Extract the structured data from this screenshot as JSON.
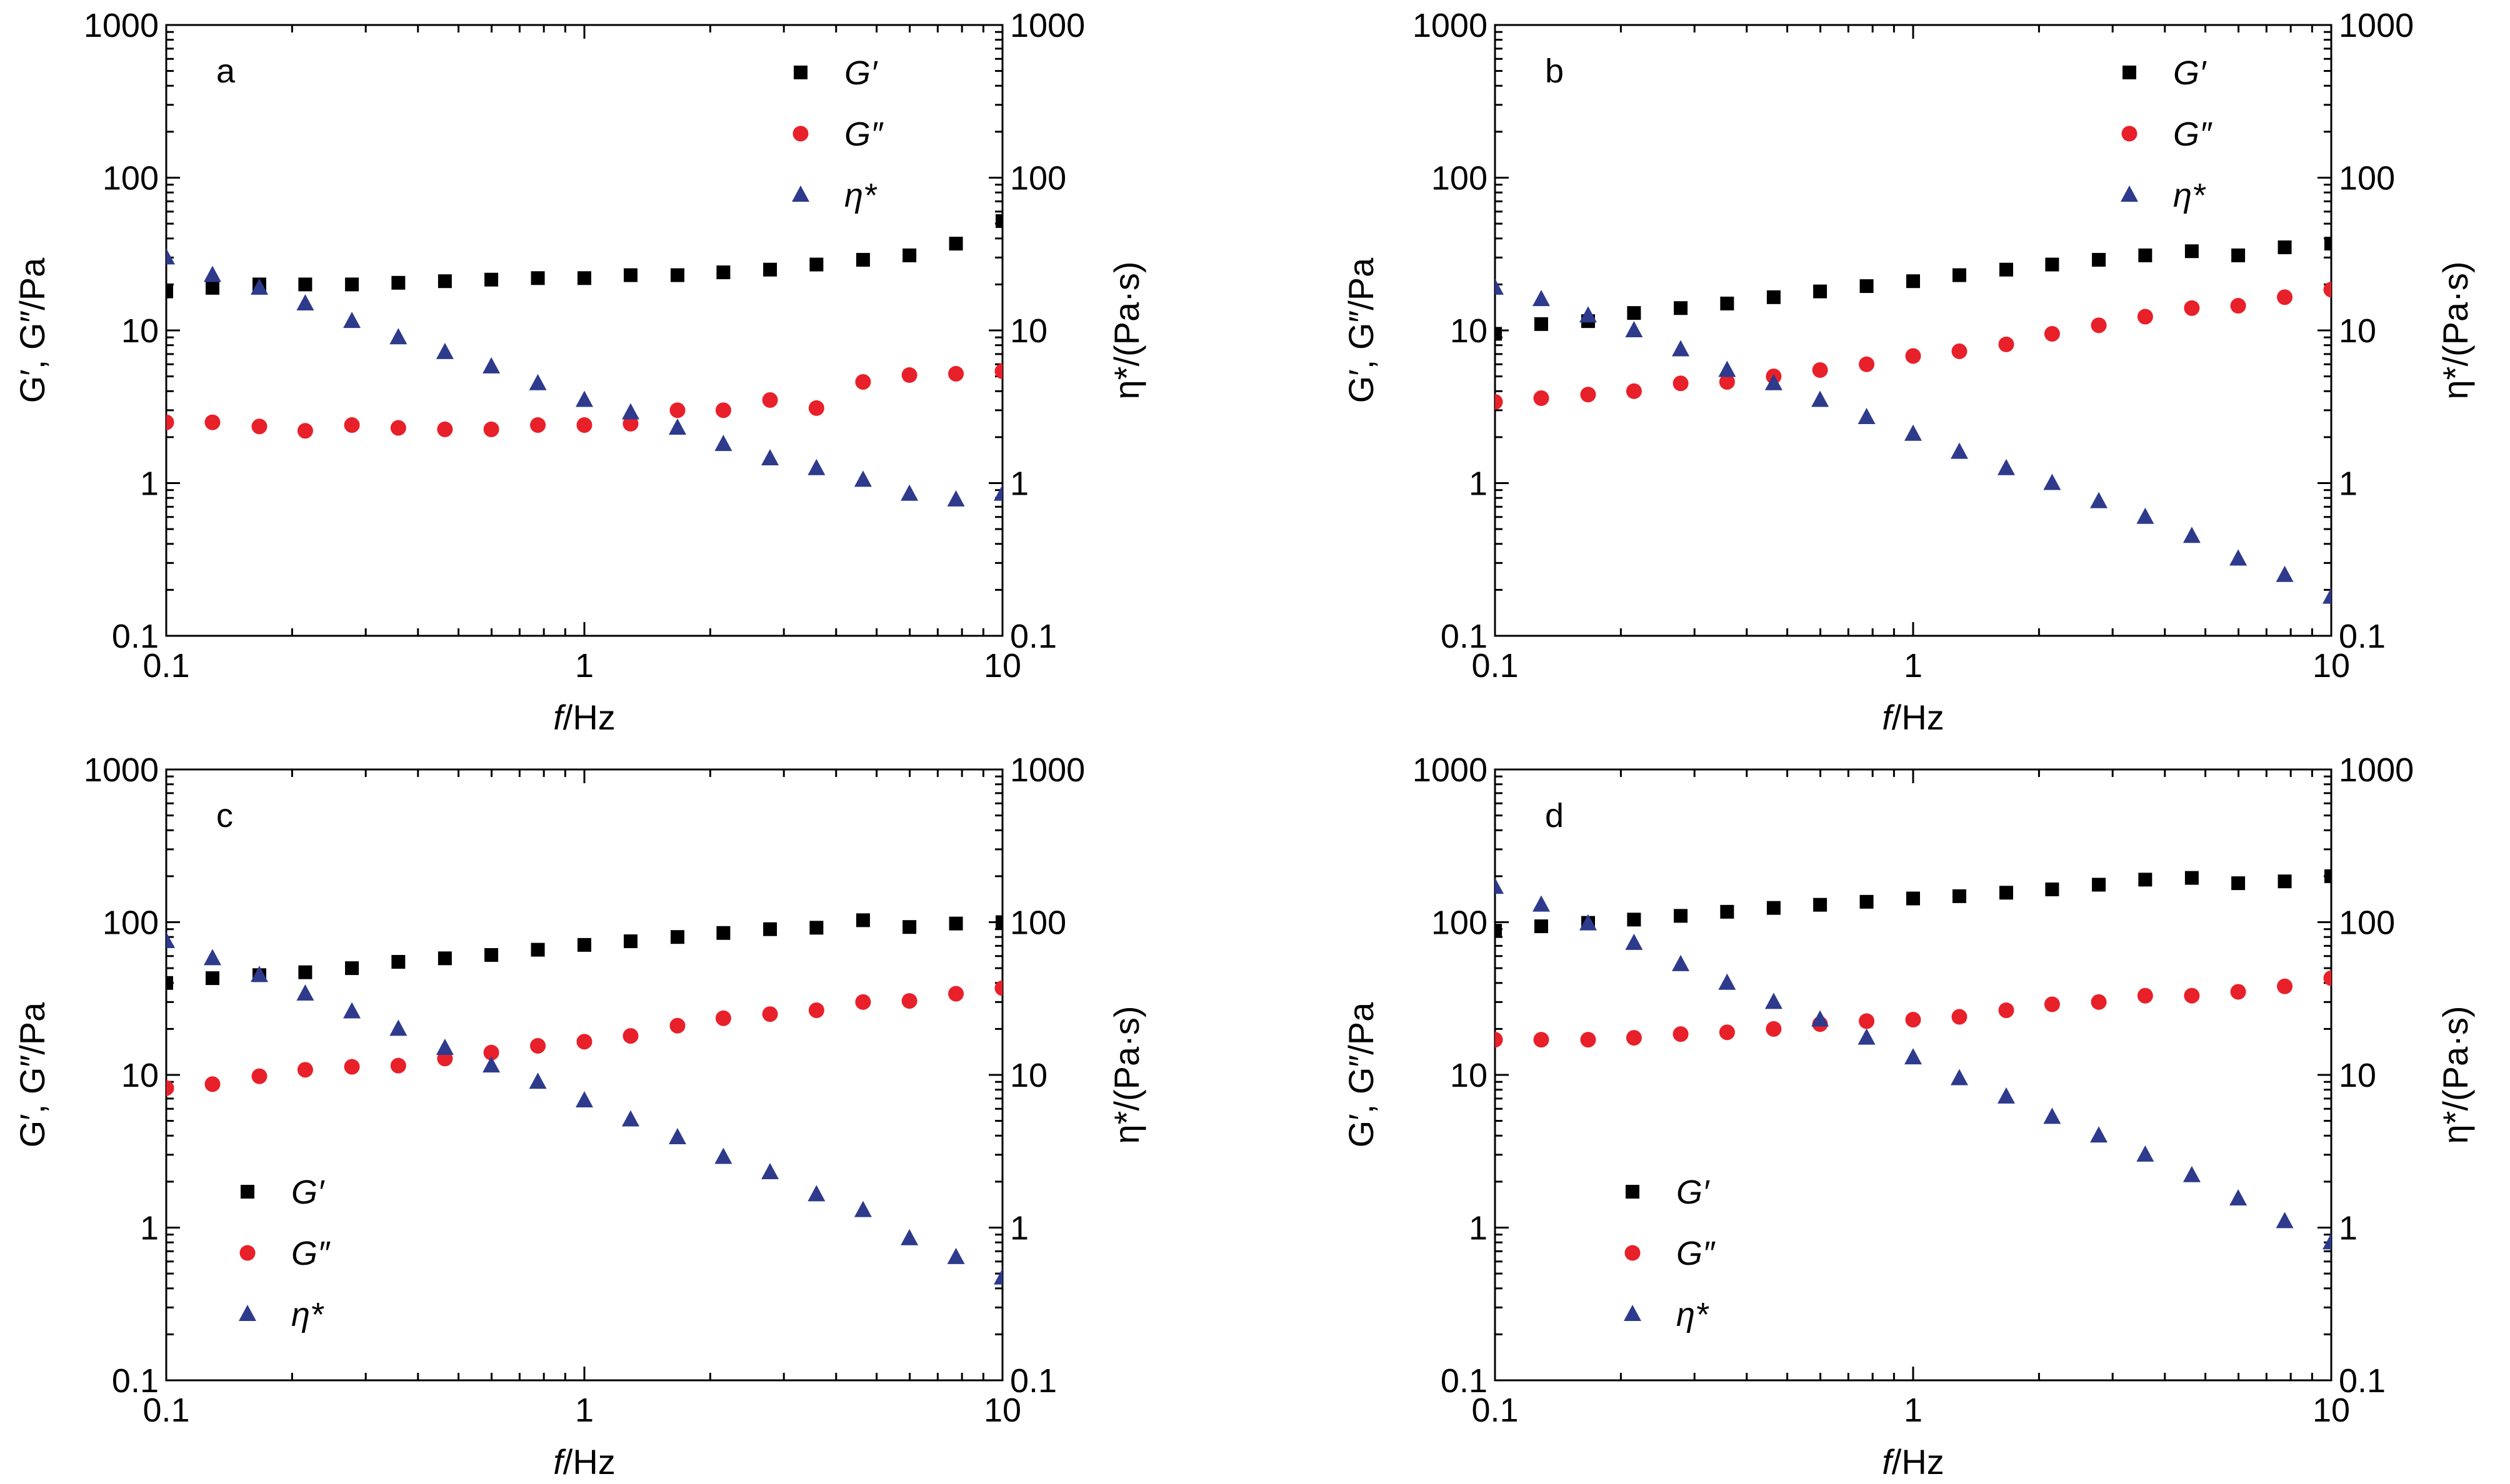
{
  "chart_data": [
    {
      "type": "scatter",
      "panel_label": "a",
      "xlabel_italic": "f",
      "xlabel_rest": "/Hz",
      "ylabel_left": "G′, G″/Pa",
      "ylabel_right": "η*/(Pa·s)",
      "x_scale": "log",
      "xlim": [
        0.1,
        10
      ],
      "y_scale": "log",
      "ylim": [
        0.1,
        1000
      ],
      "x_ticks": [
        "0.1",
        "1",
        "10"
      ],
      "y_ticks": [
        "0.1",
        "1",
        "10",
        "100",
        "1000"
      ],
      "legend_position": "top-right",
      "x": [
        0.1,
        0.129,
        0.167,
        0.215,
        0.278,
        0.359,
        0.464,
        0.599,
        0.774,
        1.0,
        1.29,
        1.67,
        2.15,
        2.78,
        3.59,
        4.64,
        5.99,
        7.74,
        10.0
      ],
      "series": [
        {
          "name": "G′",
          "marker": "square",
          "color": "#000000",
          "values": [
            18,
            19,
            20,
            20,
            20,
            20.5,
            21,
            21.5,
            22,
            22,
            23,
            23,
            24,
            25,
            27,
            29,
            31,
            37,
            52
          ]
        },
        {
          "name": "G″",
          "marker": "circle",
          "color": "#e8202a",
          "values": [
            2.5,
            2.5,
            2.35,
            2.2,
            2.4,
            2.3,
            2.25,
            2.25,
            2.4,
            2.4,
            2.45,
            3.0,
            3.0,
            3.5,
            3.1,
            4.6,
            5.1,
            5.2,
            5.4
          ]
        },
        {
          "name": "η*",
          "marker": "triangle",
          "color": "#2e3a8c",
          "values": [
            30,
            23,
            19,
            15,
            11.5,
            9,
            7.2,
            5.8,
            4.5,
            3.5,
            2.9,
            2.3,
            1.8,
            1.45,
            1.25,
            1.05,
            0.85,
            0.78,
            0.85
          ]
        }
      ]
    },
    {
      "type": "scatter",
      "panel_label": "b",
      "xlabel_italic": "f",
      "xlabel_rest": "/Hz",
      "ylabel_left": "G′, G″/Pa",
      "ylabel_right": "η*/(Pa·s)",
      "x_scale": "log",
      "xlim": [
        0.1,
        10
      ],
      "y_scale": "log",
      "ylim": [
        0.1,
        1000
      ],
      "x_ticks": [
        "0.1",
        "1",
        "10"
      ],
      "y_ticks": [
        "0.1",
        "1",
        "10",
        "100",
        "1000"
      ],
      "legend_position": "top-right",
      "x": [
        0.1,
        0.129,
        0.167,
        0.215,
        0.278,
        0.359,
        0.464,
        0.599,
        0.774,
        1.0,
        1.29,
        1.67,
        2.15,
        2.78,
        3.59,
        4.64,
        5.99,
        7.74,
        10.0
      ],
      "series": [
        {
          "name": "G′",
          "marker": "square",
          "color": "#000000",
          "values": [
            9.5,
            11,
            11.5,
            13,
            14,
            15,
            16.5,
            18,
            19.5,
            21,
            23,
            25,
            27,
            29,
            31,
            33,
            31,
            35,
            37
          ]
        },
        {
          "name": "G″",
          "marker": "circle",
          "color": "#e8202a",
          "values": [
            3.4,
            3.6,
            3.8,
            4.0,
            4.5,
            4.6,
            5.0,
            5.5,
            6.0,
            6.8,
            7.3,
            8.1,
            9.5,
            10.8,
            12.3,
            14,
            14.5,
            16.5,
            18.5
          ]
        },
        {
          "name": "η*",
          "marker": "triangle",
          "color": "#2e3a8c",
          "values": [
            19,
            16,
            12.5,
            10,
            7.5,
            5.5,
            4.5,
            3.5,
            2.7,
            2.1,
            1.6,
            1.25,
            1.0,
            0.76,
            0.6,
            0.45,
            0.32,
            0.25,
            0.18
          ]
        }
      ]
    },
    {
      "type": "scatter",
      "panel_label": "c",
      "xlabel_italic": "f",
      "xlabel_rest": "/Hz",
      "ylabel_left": "G′, G″/Pa",
      "ylabel_right": "η*/(Pa·s)",
      "x_scale": "log",
      "xlim": [
        0.1,
        10
      ],
      "y_scale": "log",
      "ylim": [
        0.1,
        1000
      ],
      "x_ticks": [
        "0.1",
        "1",
        "10"
      ],
      "y_ticks": [
        "0.1",
        "1",
        "10",
        "100",
        "1000"
      ],
      "legend_position": "bottom-left",
      "x": [
        0.1,
        0.129,
        0.167,
        0.215,
        0.278,
        0.359,
        0.464,
        0.599,
        0.774,
        1.0,
        1.29,
        1.67,
        2.15,
        2.78,
        3.59,
        4.64,
        5.99,
        7.74,
        10.0
      ],
      "series": [
        {
          "name": "G′",
          "marker": "square",
          "color": "#000000",
          "values": [
            40,
            43,
            45,
            47,
            50,
            55,
            58,
            61,
            66,
            71,
            75,
            80,
            85,
            90,
            92,
            103,
            93,
            98,
            100
          ]
        },
        {
          "name": "G″",
          "marker": "circle",
          "color": "#e8202a",
          "values": [
            8.2,
            8.7,
            9.8,
            10.8,
            11.3,
            11.5,
            12.8,
            14,
            15.5,
            16.5,
            18,
            21,
            23.5,
            25,
            26.5,
            30,
            30.5,
            34,
            37
          ]
        },
        {
          "name": "η*",
          "marker": "triangle",
          "color": "#2e3a8c",
          "values": [
            75,
            58,
            45,
            34,
            26,
            20,
            15,
            11.5,
            9,
            6.8,
            5.1,
            3.9,
            2.9,
            2.3,
            1.65,
            1.3,
            0.85,
            0.64,
            0.47
          ]
        }
      ]
    },
    {
      "type": "scatter",
      "panel_label": "d",
      "xlabel_italic": "f",
      "xlabel_rest": "/Hz",
      "ylabel_left": "G′, G″/Pa",
      "ylabel_right": "η*/(Pa·s)",
      "x_scale": "log",
      "xlim": [
        0.1,
        10
      ],
      "y_scale": "log",
      "ylim": [
        0.1,
        1000
      ],
      "x_ticks": [
        "0.1",
        "1",
        "10"
      ],
      "y_ticks": [
        "0.1",
        "1",
        "10",
        "100",
        "1000"
      ],
      "legend_position": "bottom-center",
      "x": [
        0.1,
        0.129,
        0.167,
        0.215,
        0.278,
        0.359,
        0.464,
        0.599,
        0.774,
        1.0,
        1.29,
        1.67,
        2.15,
        2.78,
        3.59,
        4.64,
        5.99,
        7.74,
        10.0
      ],
      "series": [
        {
          "name": "G′",
          "marker": "square",
          "color": "#000000",
          "values": [
            88,
            94,
            99,
            104,
            110,
            117,
            124,
            130,
            136,
            143,
            148,
            156,
            164,
            176,
            190,
            195,
            180,
            185,
            200
          ]
        },
        {
          "name": "G″",
          "marker": "circle",
          "color": "#e8202a",
          "values": [
            17,
            17,
            17,
            17.5,
            18.5,
            19,
            20,
            21.5,
            22.5,
            23,
            24,
            26.5,
            29,
            30,
            33,
            33,
            35,
            38,
            43
          ]
        },
        {
          "name": "η*",
          "marker": "triangle",
          "color": "#2e3a8c",
          "values": [
            170,
            130,
            98,
            73,
            53,
            40,
            30,
            23,
            17.5,
            13,
            9.5,
            7.2,
            5.3,
            4.0,
            3.0,
            2.2,
            1.55,
            1.1,
            0.8
          ]
        }
      ]
    }
  ]
}
